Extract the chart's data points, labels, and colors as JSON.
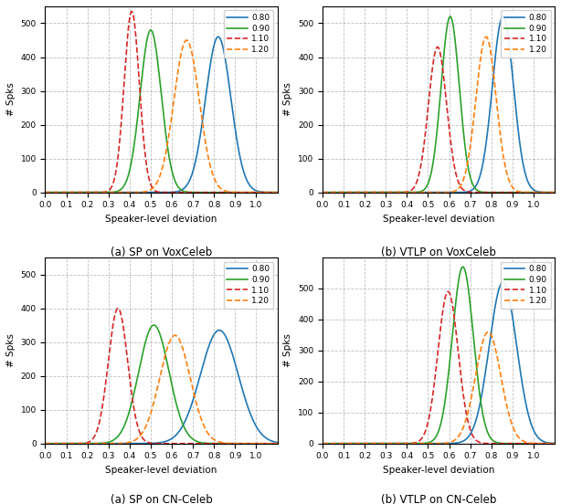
{
  "colors": {
    "0.80": "#1f77b4",
    "0.90": "#2ca02c",
    "1.10": "#d62728",
    "1.20": "#ff7f0e"
  },
  "linestyles": {
    "0.80": "solid",
    "0.90": "solid",
    "1.10": "dashed",
    "1.20": "dashed"
  },
  "labels": [
    "0.80",
    "0.90",
    "1.10",
    "1.20"
  ],
  "subplots": [
    {
      "caption": "(a) SP on VoxCeleb",
      "ylabel": "# Spks",
      "xlabel": "Speaker-level deviation",
      "ylim": [
        0,
        550
      ],
      "yticks": [
        0,
        100,
        200,
        300,
        400,
        500
      ],
      "curves": {
        "0.80": {
          "mu": 0.82,
          "sigma": 0.06,
          "peak": 460
        },
        "0.90": {
          "mu": 0.5,
          "sigma": 0.05,
          "peak": 480
        },
        "1.10": {
          "mu": 0.41,
          "sigma": 0.036,
          "peak": 535
        },
        "1.20": {
          "mu": 0.67,
          "sigma": 0.06,
          "peak": 450
        }
      }
    },
    {
      "caption": "(b) VTLP on VoxCeleb",
      "ylabel": "# Spks",
      "xlabel": "Speaker-level deviation",
      "ylim": [
        0,
        550
      ],
      "yticks": [
        0,
        100,
        200,
        300,
        400,
        500
      ],
      "curves": {
        "0.80": {
          "mu": 0.855,
          "sigma": 0.05,
          "peak": 520
        },
        "0.90": {
          "mu": 0.605,
          "sigma": 0.043,
          "peak": 520
        },
        "1.10": {
          "mu": 0.545,
          "sigma": 0.043,
          "peak": 430
        },
        "1.20": {
          "mu": 0.775,
          "sigma": 0.048,
          "peak": 460
        }
      }
    },
    {
      "caption": "(a) SP on CN-Celeb",
      "ylabel": "# Spks",
      "xlabel": "Speaker-level deviation",
      "ylim": [
        0,
        550
      ],
      "yticks": [
        0,
        100,
        200,
        300,
        400,
        500
      ],
      "curves": {
        "0.80": {
          "mu": 0.825,
          "sigma": 0.09,
          "peak": 335
        },
        "0.90": {
          "mu": 0.515,
          "sigma": 0.072,
          "peak": 350
        },
        "1.10": {
          "mu": 0.345,
          "sigma": 0.046,
          "peak": 400
        },
        "1.20": {
          "mu": 0.615,
          "sigma": 0.072,
          "peak": 320
        }
      }
    },
    {
      "caption": "(b) VTLP on CN-Celeb",
      "ylabel": "# Spks",
      "xlabel": "Speaker-level deviation",
      "ylim": [
        0,
        600
      ],
      "yticks": [
        0,
        100,
        200,
        300,
        400,
        500
      ],
      "curves": {
        "0.80": {
          "mu": 0.855,
          "sigma": 0.065,
          "peak": 520
        },
        "0.90": {
          "mu": 0.665,
          "sigma": 0.05,
          "peak": 570
        },
        "1.10": {
          "mu": 0.595,
          "sigma": 0.048,
          "peak": 490
        },
        "1.20": {
          "mu": 0.785,
          "sigma": 0.06,
          "peak": 360
        }
      }
    }
  ],
  "xlim": [
    0.0,
    1.1
  ],
  "xticks": [
    0.0,
    0.1,
    0.2,
    0.3,
    0.4,
    0.5,
    0.6,
    0.7,
    0.8,
    0.9,
    1.0
  ]
}
